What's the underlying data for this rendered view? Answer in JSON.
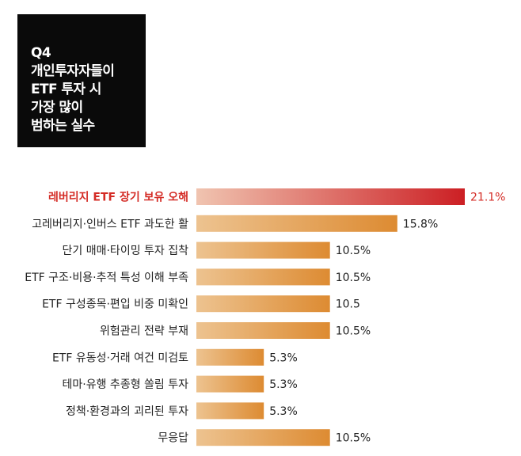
{
  "title_lines": [
    "Q4",
    "개인투자자들이",
    "ETF 투자 시",
    "가장 많이",
    "범하는 실수"
  ],
  "colors": {
    "bar_light": "#edc390",
    "bar_dark": "#dd8b32",
    "highlight_light": "#f0c4b0",
    "highlight_dark": "#cc1f24",
    "highlight_text": "#d42b25",
    "text": "#222222"
  },
  "chart_data": {
    "type": "bar",
    "orientation": "horizontal",
    "title": "",
    "xlabel": "",
    "ylabel": "",
    "xlim": [
      0,
      21.1
    ],
    "grid": false,
    "legend": "none",
    "highlight_index": 0,
    "categories": [
      "레버리지 ETF 장기 보유 오해",
      "고레버리지·인버스 ETF 과도한 활",
      "단기 매매·타이밍 투자 집착",
      "ETF 구조·비용·추적 특성 이해 부족",
      "ETF 구성종목·편입 비중 미확인",
      "위험관리 전략 부재",
      "ETF 유동성·거래 여건 미검토",
      "테마·유행 추종형 쏠림 투자",
      "정책·환경과의 괴리된 투자",
      "무응답"
    ],
    "values": [
      21.1,
      15.8,
      10.5,
      10.5,
      10.5,
      10.5,
      5.3,
      5.3,
      5.3,
      10.5
    ],
    "value_labels": [
      "21.1%",
      "15.8%",
      "10.5%",
      "10.5%",
      "10.5",
      "10.5%",
      "5.3%",
      "5.3%",
      "5.3%",
      "10.5%"
    ]
  }
}
